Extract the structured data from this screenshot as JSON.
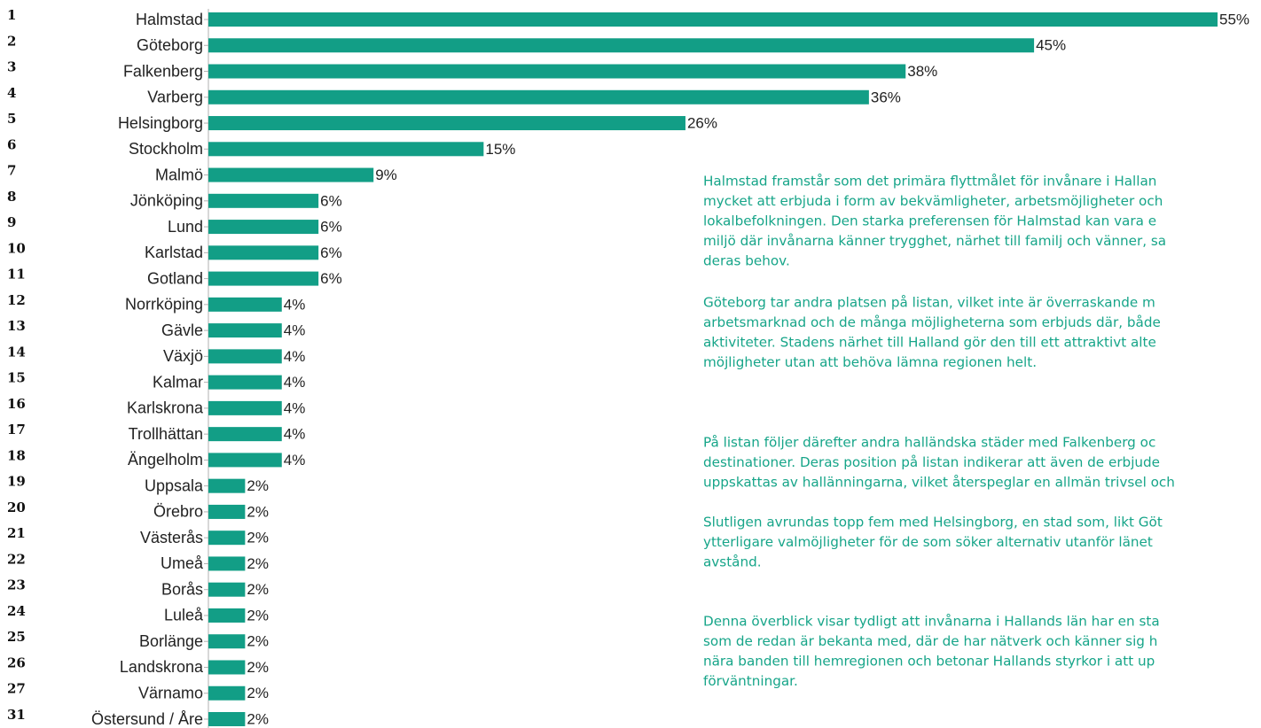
{
  "chart_data": {
    "type": "bar",
    "orientation": "horizontal",
    "color": "#129e86",
    "ranks": [
      "1",
      "2",
      "3",
      "4",
      "5",
      "6",
      "7",
      "8",
      "9",
      "10",
      "11",
      "12",
      "13",
      "14",
      "15",
      "16",
      "17",
      "18",
      "19",
      "20",
      "21",
      "22",
      "23",
      "24",
      "25",
      "26",
      "27",
      "31"
    ],
    "categories": [
      "Halmstad",
      "Göteborg",
      "Falkenberg",
      "Varberg",
      "Helsingborg",
      "Stockholm",
      "Malmö",
      "Jönköping",
      "Lund",
      "Karlstad",
      "Gotland",
      "Norrköping",
      "Gävle",
      "Växjö",
      "Kalmar",
      "Karlskrona",
      "Trollhättan",
      "Ängelholm",
      "Uppsala",
      "Örebro",
      "Västerås",
      "Umeå",
      "Borås",
      "Luleå",
      "Borlänge",
      "Landskrona",
      "Värnamo",
      "Östersund / Åre"
    ],
    "values": [
      55,
      45,
      38,
      36,
      26,
      15,
      9,
      6,
      6,
      6,
      6,
      4,
      4,
      4,
      4,
      4,
      4,
      4,
      2,
      2,
      2,
      2,
      2,
      2,
      2,
      2,
      2,
      2
    ],
    "value_labels": [
      "55%",
      "45%",
      "38%",
      "36%",
      "26%",
      "15%",
      "9%",
      "6%",
      "6%",
      "6%",
      "6%",
      "4%",
      "4%",
      "4%",
      "4%",
      "4%",
      "4%",
      "4%",
      "2%",
      "2%",
      "2%",
      "2%",
      "2%",
      "2%",
      "2%",
      "2%",
      "2%",
      "2%"
    ],
    "xlim": [
      0,
      55
    ]
  },
  "commentary": {
    "color": "#17a589",
    "paragraphs": [
      [
        "Halmstad framstår som det primära flyttmålet för invånare i Hallan",
        "mycket att erbjuda i form av bekvämligheter, arbetsmöjligheter och",
        "lokalbefolkningen. Den starka preferensen för Halmstad kan vara e",
        "miljö där invånarna känner trygghet, närhet till familj och vänner, sa",
        "deras behov."
      ],
      [
        "Göteborg tar andra platsen på listan, vilket inte är överraskande m",
        "arbetsmarknad och de många möjligheterna som erbjuds där, både",
        "aktiviteter. Stadens närhet till Halland gör den till ett attraktivt alte",
        "möjligheter utan att behöva lämna regionen helt."
      ],
      [
        "På listan följer därefter andra halländska städer med Falkenberg oc",
        "destinationer. Deras position på listan indikerar att även de erbjude",
        "uppskattas av hallänningarna, vilket återspeglar en allmän trivsel och"
      ],
      [
        "Slutligen avrundas topp fem med Helsingborg, en stad som, likt Göt",
        "ytterligare valmöjligheter för de som söker alternativ utanför länet",
        "avstånd."
      ],
      [
        "Denna överblick visar tydligt att invånarna i Hallands län har en sta",
        "som de redan är bekanta med, där de har nätverk och känner sig h",
        "nära banden till hemregionen och betonar Hallands styrkor i att up",
        "förväntningar."
      ]
    ]
  }
}
